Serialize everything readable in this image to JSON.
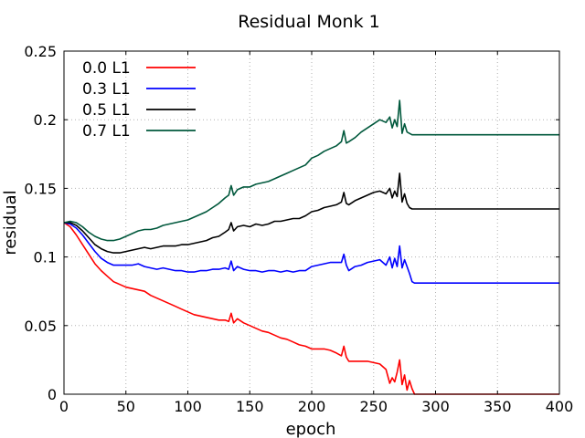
{
  "chart_data": {
    "type": "line",
    "title": "Residual Monk 1",
    "xlabel": "epoch",
    "ylabel": "residual",
    "xlim": [
      0,
      400
    ],
    "ylim": [
      0,
      0.25
    ],
    "xticks": [
      0,
      50,
      100,
      150,
      200,
      250,
      300,
      350,
      400
    ],
    "yticks": [
      0,
      0.05,
      0.1,
      0.15,
      0.2,
      0.25
    ],
    "xtick_labels": [
      "0",
      "50",
      "100",
      "150",
      "200",
      "250",
      "300",
      "350",
      "400"
    ],
    "ytick_labels": [
      "0",
      "0.05",
      "0.1",
      "0.15",
      "0.2",
      "0.25"
    ],
    "grid": true,
    "legend_position": "top-left",
    "series": [
      {
        "name": "0.0 L1",
        "color": "#ff0000",
        "x": [
          0,
          5,
          10,
          15,
          20,
          25,
          30,
          35,
          40,
          45,
          50,
          55,
          60,
          65,
          70,
          75,
          80,
          85,
          90,
          95,
          100,
          105,
          110,
          115,
          120,
          125,
          130,
          133,
          135,
          137,
          140,
          145,
          150,
          155,
          160,
          165,
          170,
          175,
          180,
          185,
          190,
          195,
          200,
          205,
          210,
          215,
          220,
          224,
          226,
          228,
          230,
          235,
          240,
          245,
          250,
          255,
          260,
          263,
          265,
          267,
          269,
          271,
          273,
          275,
          277,
          279,
          281,
          283,
          285,
          290,
          300,
          350,
          400
        ],
        "y": [
          0.125,
          0.122,
          0.116,
          0.109,
          0.102,
          0.095,
          0.09,
          0.086,
          0.082,
          0.08,
          0.078,
          0.077,
          0.076,
          0.075,
          0.072,
          0.07,
          0.068,
          0.066,
          0.064,
          0.062,
          0.06,
          0.058,
          0.057,
          0.056,
          0.055,
          0.054,
          0.054,
          0.053,
          0.059,
          0.052,
          0.055,
          0.052,
          0.05,
          0.048,
          0.046,
          0.045,
          0.043,
          0.041,
          0.04,
          0.038,
          0.036,
          0.035,
          0.033,
          0.033,
          0.033,
          0.032,
          0.03,
          0.028,
          0.035,
          0.027,
          0.024,
          0.024,
          0.024,
          0.024,
          0.023,
          0.022,
          0.018,
          0.008,
          0.012,
          0.009,
          0.016,
          0.025,
          0.007,
          0.014,
          0.003,
          0.01,
          0.004,
          0.0,
          0.0,
          0.0,
          0.0,
          0.0,
          0.0
        ]
      },
      {
        "name": "0.3 L1",
        "color": "#0000ff",
        "x": [
          0,
          5,
          10,
          15,
          20,
          25,
          30,
          35,
          40,
          45,
          50,
          55,
          60,
          65,
          70,
          75,
          80,
          85,
          90,
          95,
          100,
          105,
          110,
          115,
          120,
          125,
          130,
          133,
          135,
          137,
          140,
          145,
          150,
          155,
          160,
          165,
          170,
          175,
          180,
          185,
          190,
          195,
          200,
          205,
          210,
          215,
          220,
          224,
          226,
          228,
          230,
          235,
          240,
          245,
          250,
          255,
          260,
          263,
          265,
          267,
          269,
          271,
          273,
          275,
          277,
          279,
          281,
          283,
          285,
          290,
          300,
          350,
          400
        ],
        "y": [
          0.125,
          0.124,
          0.121,
          0.116,
          0.11,
          0.104,
          0.099,
          0.096,
          0.094,
          0.094,
          0.094,
          0.094,
          0.095,
          0.093,
          0.092,
          0.091,
          0.092,
          0.091,
          0.09,
          0.09,
          0.089,
          0.089,
          0.09,
          0.09,
          0.091,
          0.091,
          0.092,
          0.091,
          0.097,
          0.09,
          0.093,
          0.091,
          0.09,
          0.09,
          0.089,
          0.09,
          0.09,
          0.089,
          0.09,
          0.089,
          0.09,
          0.09,
          0.093,
          0.094,
          0.095,
          0.096,
          0.096,
          0.096,
          0.102,
          0.094,
          0.09,
          0.093,
          0.094,
          0.096,
          0.097,
          0.098,
          0.094,
          0.1,
          0.092,
          0.099,
          0.093,
          0.108,
          0.092,
          0.098,
          0.093,
          0.088,
          0.082,
          0.081,
          0.081,
          0.081,
          0.081,
          0.081,
          0.081
        ]
      },
      {
        "name": "0.5 L1",
        "color": "#000000",
        "x": [
          0,
          5,
          10,
          15,
          20,
          25,
          30,
          35,
          40,
          45,
          50,
          55,
          60,
          65,
          70,
          75,
          80,
          85,
          90,
          95,
          100,
          105,
          110,
          115,
          120,
          125,
          130,
          133,
          135,
          137,
          140,
          145,
          150,
          155,
          160,
          165,
          170,
          175,
          180,
          185,
          190,
          195,
          200,
          205,
          210,
          215,
          220,
          224,
          226,
          228,
          230,
          235,
          240,
          245,
          250,
          255,
          260,
          263,
          265,
          267,
          269,
          271,
          273,
          275,
          277,
          279,
          281,
          283,
          285,
          290,
          300,
          350,
          400
        ],
        "y": [
          0.125,
          0.125,
          0.123,
          0.119,
          0.114,
          0.109,
          0.106,
          0.104,
          0.103,
          0.103,
          0.104,
          0.105,
          0.106,
          0.107,
          0.106,
          0.107,
          0.108,
          0.108,
          0.108,
          0.109,
          0.109,
          0.11,
          0.111,
          0.112,
          0.114,
          0.115,
          0.118,
          0.12,
          0.125,
          0.119,
          0.122,
          0.123,
          0.122,
          0.124,
          0.123,
          0.124,
          0.126,
          0.126,
          0.127,
          0.128,
          0.128,
          0.13,
          0.133,
          0.134,
          0.136,
          0.137,
          0.138,
          0.14,
          0.147,
          0.139,
          0.138,
          0.141,
          0.143,
          0.145,
          0.147,
          0.148,
          0.146,
          0.15,
          0.143,
          0.148,
          0.144,
          0.161,
          0.14,
          0.146,
          0.139,
          0.136,
          0.135,
          0.135,
          0.135,
          0.135,
          0.135,
          0.135,
          0.135
        ]
      },
      {
        "name": "0.7 L1",
        "color": "#00583c",
        "x": [
          0,
          5,
          10,
          15,
          20,
          25,
          30,
          35,
          40,
          45,
          50,
          55,
          60,
          65,
          70,
          75,
          80,
          85,
          90,
          95,
          100,
          105,
          110,
          115,
          120,
          125,
          130,
          133,
          135,
          137,
          140,
          145,
          150,
          155,
          160,
          165,
          170,
          175,
          180,
          185,
          190,
          195,
          200,
          205,
          210,
          215,
          220,
          224,
          226,
          228,
          230,
          235,
          240,
          245,
          250,
          255,
          260,
          263,
          265,
          267,
          269,
          271,
          273,
          275,
          277,
          279,
          281,
          283,
          285,
          290,
          300,
          350,
          400
        ],
        "y": [
          0.125,
          0.126,
          0.125,
          0.122,
          0.118,
          0.115,
          0.113,
          0.112,
          0.112,
          0.113,
          0.115,
          0.117,
          0.119,
          0.12,
          0.12,
          0.121,
          0.123,
          0.124,
          0.125,
          0.126,
          0.127,
          0.129,
          0.131,
          0.133,
          0.136,
          0.139,
          0.143,
          0.145,
          0.152,
          0.145,
          0.149,
          0.151,
          0.151,
          0.153,
          0.154,
          0.155,
          0.157,
          0.159,
          0.161,
          0.163,
          0.165,
          0.167,
          0.172,
          0.174,
          0.177,
          0.179,
          0.181,
          0.184,
          0.192,
          0.183,
          0.184,
          0.187,
          0.191,
          0.194,
          0.197,
          0.2,
          0.198,
          0.202,
          0.194,
          0.2,
          0.195,
          0.214,
          0.19,
          0.197,
          0.191,
          0.19,
          0.189,
          0.189,
          0.189,
          0.189,
          0.189,
          0.189,
          0.189
        ]
      }
    ]
  }
}
